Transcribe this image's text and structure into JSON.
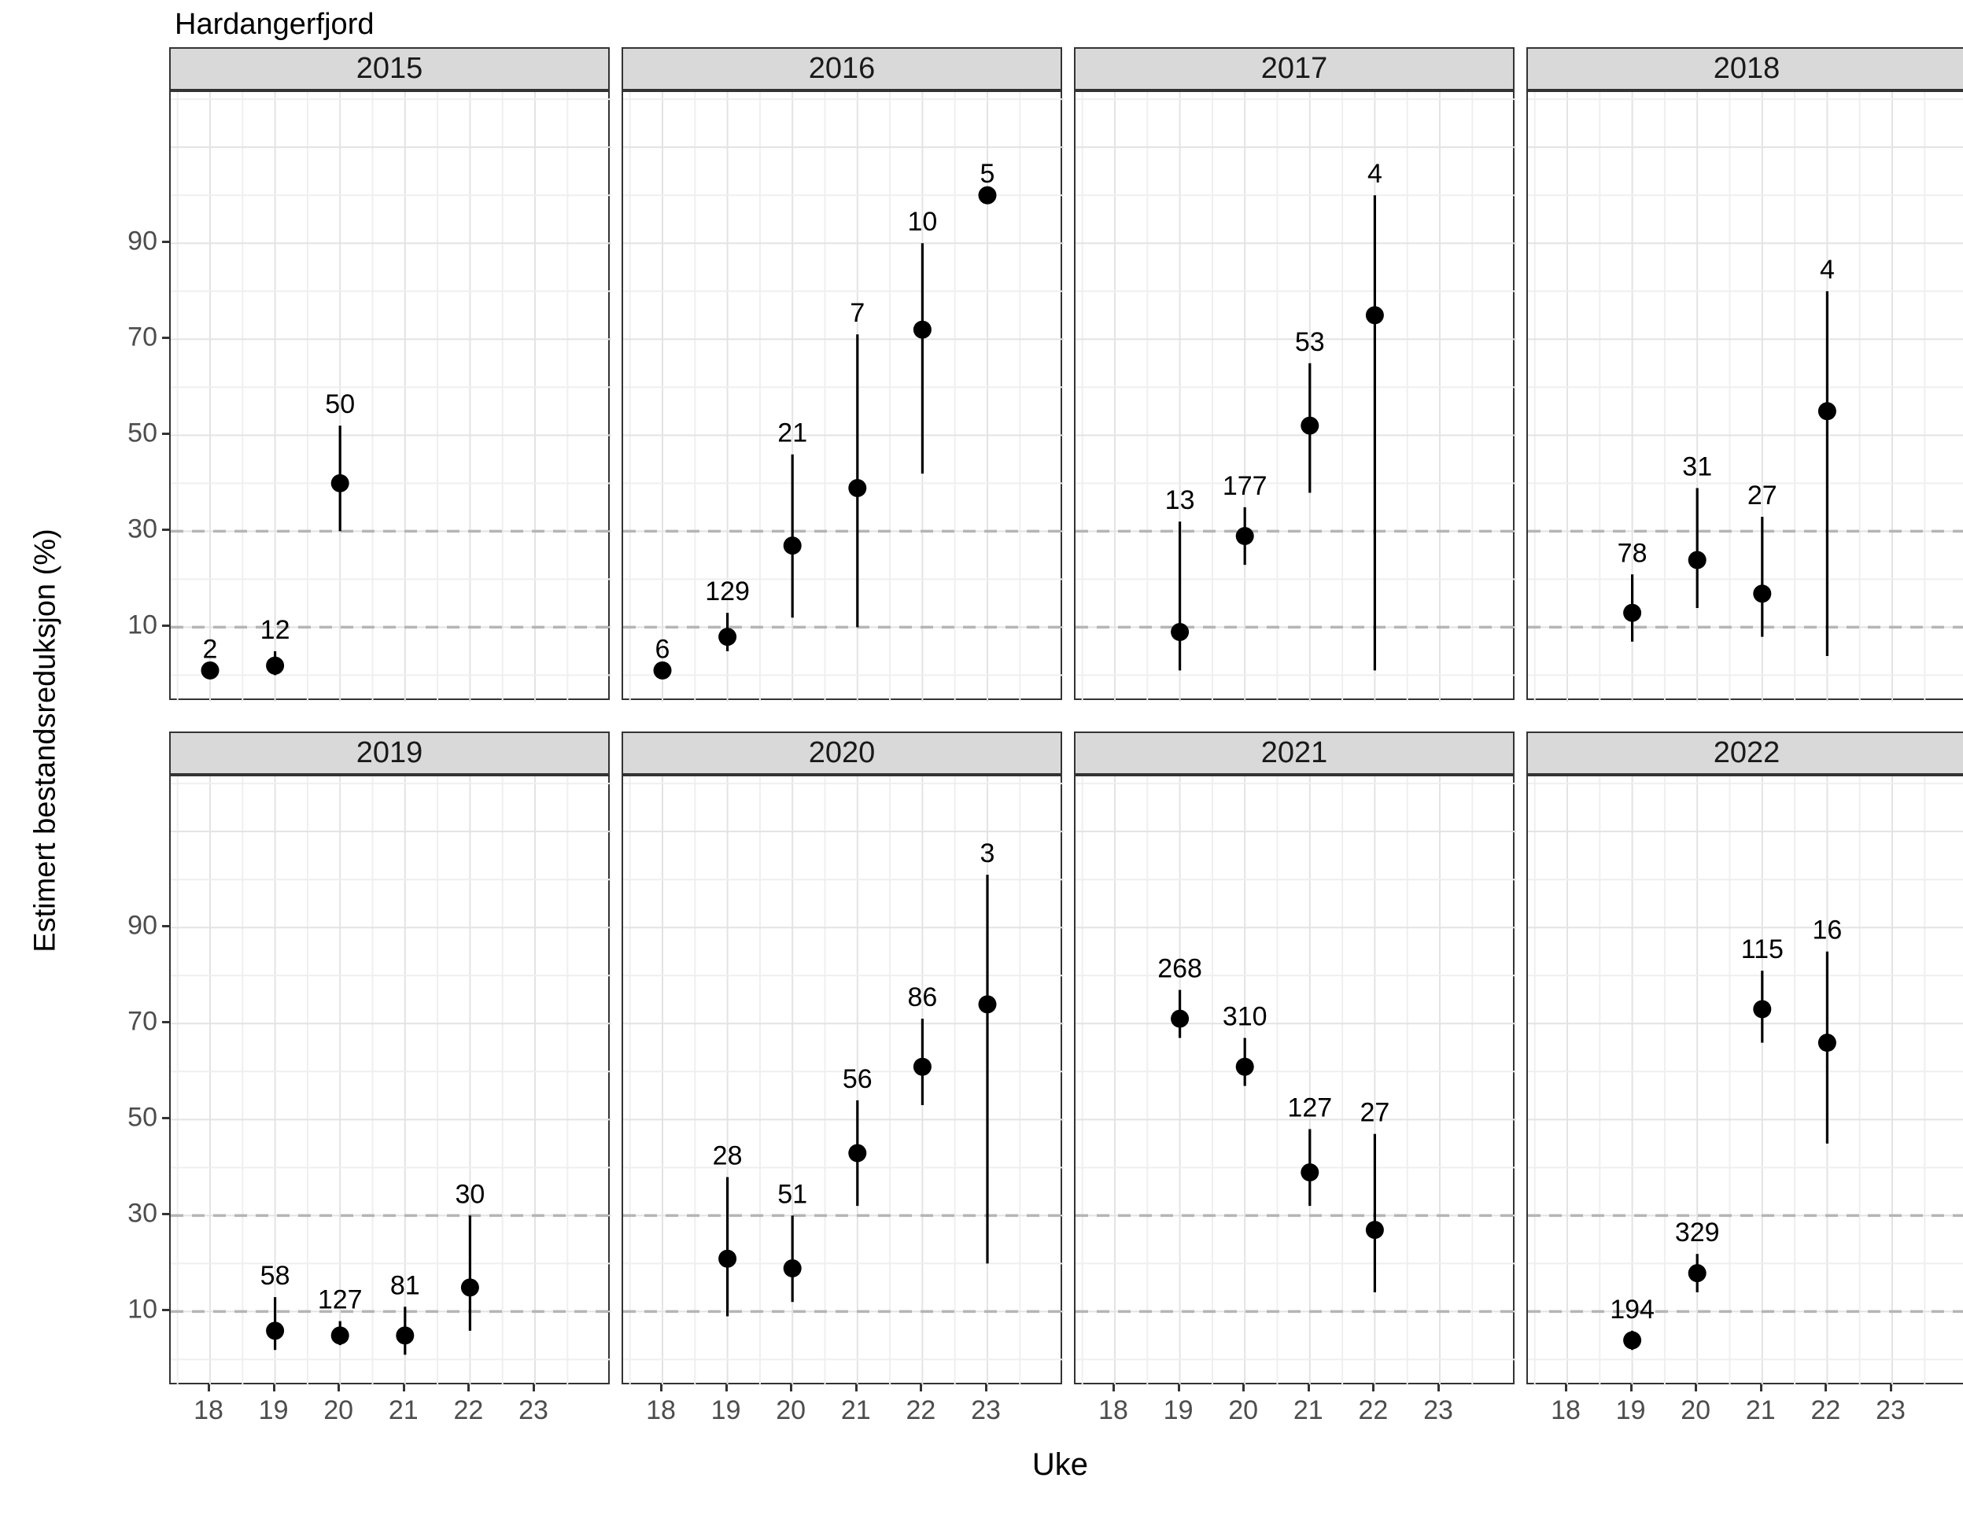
{
  "page": {
    "title": "Hardangerfjord",
    "x_title": "Uke",
    "y_title": "Estimert bestandsreduksjon (%)"
  },
  "colors": {
    "strip_bg": "#d9d9d9",
    "panel_border": "#333333",
    "grid_major": "#e3e3e3",
    "grid_minor": "#efefef",
    "ref_dashed": "#b5b5b5",
    "point": "#000000",
    "tick_text": "#4d4d4d"
  },
  "chart_data": {
    "type": "scatter",
    "title": "Hardangerfjord",
    "xlabel": "Uke",
    "ylabel": "Estimert bestandsreduksjon (%)",
    "legend": "none",
    "grid": "on",
    "x_ticks": [
      18,
      19,
      20,
      21,
      22,
      23
    ],
    "y_ticks": [
      10,
      30,
      50,
      70,
      90
    ],
    "y_major_grid": [
      10,
      30,
      50,
      70,
      90,
      110
    ],
    "y_minor_grid": [
      0,
      20,
      40,
      60,
      80,
      100,
      120
    ],
    "x_minor_grid": [
      17.5,
      18.5,
      19.5,
      20.5,
      21.5,
      22.5,
      23.5
    ],
    "ref_lines_dashed": [
      10,
      30
    ],
    "ylim": [
      -5.5,
      121.5
    ],
    "facets": [
      {
        "year": "2015",
        "points": [
          {
            "week": 18,
            "est": 1,
            "lo": null,
            "hi": null,
            "n": 2
          },
          {
            "week": 19,
            "est": 2,
            "lo": 0,
            "hi": 5,
            "n": 12
          },
          {
            "week": 20,
            "est": 40,
            "lo": 30,
            "hi": 52,
            "n": 50
          }
        ]
      },
      {
        "year": "2016",
        "points": [
          {
            "week": 18,
            "est": 1,
            "lo": null,
            "hi": null,
            "n": 6
          },
          {
            "week": 19,
            "est": 8,
            "lo": 5,
            "hi": 13,
            "n": 129
          },
          {
            "week": 20,
            "est": 27,
            "lo": 12,
            "hi": 46,
            "n": 21
          },
          {
            "week": 21,
            "est": 39,
            "lo": 10,
            "hi": 71,
            "n": 7
          },
          {
            "week": 22,
            "est": 72,
            "lo": 42,
            "hi": 90,
            "n": 10
          },
          {
            "week": 23,
            "est": 100,
            "lo": null,
            "hi": null,
            "n": 5
          }
        ]
      },
      {
        "year": "2017",
        "points": [
          {
            "week": 19,
            "est": 9,
            "lo": 1,
            "hi": 32,
            "n": 13
          },
          {
            "week": 20,
            "est": 29,
            "lo": 23,
            "hi": 35,
            "n": 177
          },
          {
            "week": 21,
            "est": 52,
            "lo": 38,
            "hi": 65,
            "n": 53
          },
          {
            "week": 22,
            "est": 75,
            "lo": 1,
            "hi": 100,
            "n": 4
          }
        ]
      },
      {
        "year": "2018",
        "points": [
          {
            "week": 19,
            "est": 13,
            "lo": 7,
            "hi": 21,
            "n": 78
          },
          {
            "week": 20,
            "est": 24,
            "lo": 14,
            "hi": 39,
            "n": 31
          },
          {
            "week": 21,
            "est": 17,
            "lo": 8,
            "hi": 33,
            "n": 27
          },
          {
            "week": 22,
            "est": 55,
            "lo": 4,
            "hi": 80,
            "n": 4
          }
        ]
      },
      {
        "year": "2019",
        "points": [
          {
            "week": 19,
            "est": 6,
            "lo": 2,
            "hi": 13,
            "n": 58
          },
          {
            "week": 20,
            "est": 5,
            "lo": 3,
            "hi": 8,
            "n": 127
          },
          {
            "week": 21,
            "est": 5,
            "lo": 1,
            "hi": 11,
            "n": 81
          },
          {
            "week": 22,
            "est": 15,
            "lo": 6,
            "hi": 30,
            "n": 30
          }
        ]
      },
      {
        "year": "2020",
        "points": [
          {
            "week": 19,
            "est": 21,
            "lo": 9,
            "hi": 38,
            "n": 28
          },
          {
            "week": 20,
            "est": 19,
            "lo": 12,
            "hi": 30,
            "n": 51
          },
          {
            "week": 21,
            "est": 43,
            "lo": 32,
            "hi": 54,
            "n": 56
          },
          {
            "week": 22,
            "est": 61,
            "lo": 53,
            "hi": 71,
            "n": 86
          },
          {
            "week": 23,
            "est": 74,
            "lo": 20,
            "hi": 101,
            "n": 3
          }
        ]
      },
      {
        "year": "2021",
        "points": [
          {
            "week": 19,
            "est": 71,
            "lo": 67,
            "hi": 77,
            "n": 268
          },
          {
            "week": 20,
            "est": 61,
            "lo": 57,
            "hi": 67,
            "n": 310
          },
          {
            "week": 21,
            "est": 39,
            "lo": 32,
            "hi": 48,
            "n": 127
          },
          {
            "week": 22,
            "est": 27,
            "lo": 14,
            "hi": 47,
            "n": 27
          }
        ]
      },
      {
        "year": "2022",
        "points": [
          {
            "week": 19,
            "est": 4,
            "lo": 2,
            "hi": 6,
            "n": 194
          },
          {
            "week": 20,
            "est": 18,
            "lo": 14,
            "hi": 22,
            "n": 329
          },
          {
            "week": 21,
            "est": 73,
            "lo": 66,
            "hi": 81,
            "n": 115
          },
          {
            "week": 22,
            "est": 66,
            "lo": 45,
            "hi": 85,
            "n": 16
          }
        ]
      }
    ]
  }
}
